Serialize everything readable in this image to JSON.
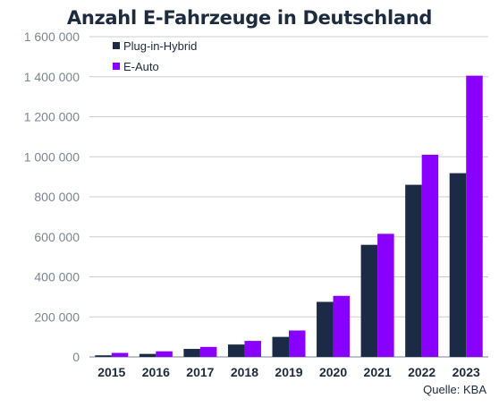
{
  "chart_data": {
    "type": "bar",
    "title": "Anzahl E-Fahrzeuge in Deutschland",
    "source": "Quelle: KBA",
    "categories": [
      "2015",
      "2016",
      "2017",
      "2018",
      "2019",
      "2020",
      "2021",
      "2022",
      "2023"
    ],
    "series": [
      {
        "name": "Plug-in-Hybrid",
        "color": "#1c2b45",
        "values": [
          8000,
          15000,
          40000,
          62000,
          100000,
          275000,
          560000,
          860000,
          918000
        ]
      },
      {
        "name": "E-Auto",
        "color": "#8a00ff",
        "values": [
          20000,
          28000,
          50000,
          80000,
          132000,
          305000,
          615000,
          1010000,
          1405000
        ]
      }
    ],
    "ylim": [
      0,
      1600000
    ],
    "yticks": [
      0,
      200000,
      400000,
      600000,
      800000,
      1000000,
      1200000,
      1400000,
      1600000
    ],
    "ytick_labels": [
      "0",
      "200 000",
      "400 000",
      "600 000",
      "800 000",
      "1 000 000",
      "1 200 000",
      "1 400 000",
      "1 600 000"
    ],
    "xlabel": "",
    "ylabel": "",
    "grid": true,
    "legend_position": "top-left"
  }
}
